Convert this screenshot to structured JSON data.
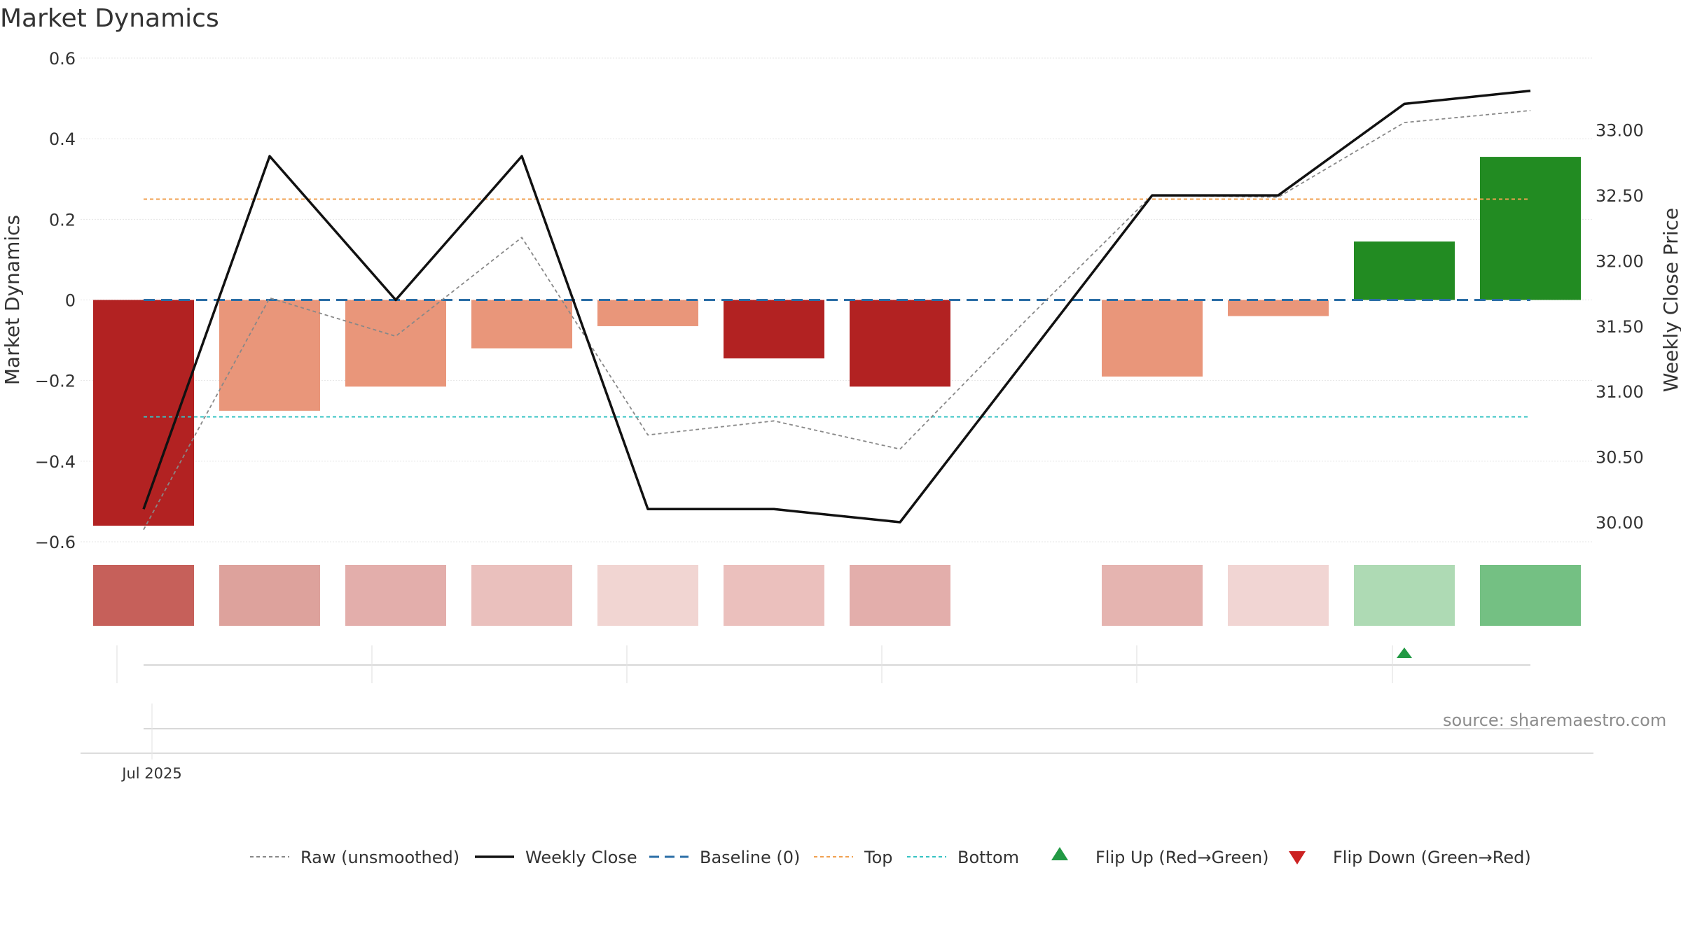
{
  "chart_data": {
    "type": "bar",
    "title": "Market Dynamics",
    "source": "source: sharemaestro.com",
    "ylabel_left": "Market Dynamics",
    "ylabel_right": "Weekly Close Price",
    "ylim_left": [
      -0.6,
      0.6
    ],
    "ylim_right": [
      29.85,
      33.55
    ],
    "left_ticks": [
      {
        "value": 0.6,
        "label": "0.6"
      },
      {
        "value": 0.4,
        "label": "0.4"
      },
      {
        "value": 0.2,
        "label": "0.2"
      },
      {
        "value": 0,
        "label": "0"
      },
      {
        "value": -0.2,
        "label": "−0.2"
      },
      {
        "value": -0.4,
        "label": "−0.4"
      },
      {
        "value": -0.6,
        "label": "−0.6"
      }
    ],
    "right_ticks": [
      {
        "value": 33.0,
        "label": "33.00"
      },
      {
        "value": 32.5,
        "label": "32.50"
      },
      {
        "value": 32.0,
        "label": "32.00"
      },
      {
        "value": 31.5,
        "label": "31.50"
      },
      {
        "value": 31.0,
        "label": "31.00"
      },
      {
        "value": 30.5,
        "label": "30.50"
      },
      {
        "value": 30.0,
        "label": "30.00"
      }
    ],
    "x_tick_label": "Jul 2025",
    "grid": true,
    "bars": [
      {
        "value": -0.56,
        "color": "#b22222"
      },
      {
        "value": -0.275,
        "color": "#e9967a"
      },
      {
        "value": -0.215,
        "color": "#e9967a"
      },
      {
        "value": -0.12,
        "color": "#e9967a"
      },
      {
        "value": -0.065,
        "color": "#e9967a"
      },
      {
        "value": -0.145,
        "color": "#b22222"
      },
      {
        "value": -0.215,
        "color": "#b22222"
      },
      {
        "value": null,
        "color": null
      },
      {
        "value": -0.19,
        "color": "#e9967a"
      },
      {
        "value": -0.04,
        "color": "#e9967a"
      },
      {
        "value": 0.145,
        "color": "#228b22"
      },
      {
        "value": 0.355,
        "color": "#228b22"
      }
    ],
    "heat_strip": [
      "#c6605a",
      "#dda29c",
      "#e3aeab",
      "#eac0bd",
      "#f1d5d2",
      "#ebc0bd",
      "#e3aeab",
      null,
      "#e5b4b0",
      "#f1d5d3",
      "#aedab4",
      "#74c083"
    ],
    "series": [
      {
        "name": "Raw (unsmoothed)",
        "color": "#888888",
        "style": "dotted",
        "axis": "left",
        "values": [
          -0.57,
          0.005,
          -0.09,
          0.155,
          -0.335,
          -0.3,
          -0.37,
          -0.05,
          0.26,
          0.255,
          0.44,
          0.47
        ]
      },
      {
        "name": "Weekly Close",
        "color": "#111111",
        "style": "solid",
        "axis": "right",
        "values": [
          30.1,
          32.8,
          31.7,
          32.8,
          30.1,
          30.1,
          30.0,
          null,
          32.5,
          32.5,
          33.2,
          33.3
        ]
      }
    ],
    "baseline": {
      "name": "Baseline (0)",
      "value": 0,
      "color": "#2b6ea6"
    },
    "top": {
      "name": "Top",
      "value": 0.25,
      "color": "#f0a050"
    },
    "bottom": {
      "name": "Bottom",
      "value": -0.29,
      "color": "#36c3c3"
    },
    "flips": [
      {
        "index": 10,
        "direction": "up",
        "color": "#229944"
      }
    ],
    "legend": {
      "placement": "bottom-center",
      "items": [
        {
          "label": "Raw (unsmoothed)",
          "kind": "dotted",
          "color": "#888888"
        },
        {
          "label": "Weekly Close",
          "kind": "solid",
          "color": "#111111"
        },
        {
          "label": "Baseline (0)",
          "kind": "dashed",
          "color": "#2b6ea6"
        },
        {
          "label": "Top",
          "kind": "dotted",
          "color": "#f0a050"
        },
        {
          "label": "Bottom",
          "kind": "dotted",
          "color": "#36c3c3"
        },
        {
          "label": "Flip Up (Red→Green)",
          "kind": "triangle-up",
          "color": "#229944"
        },
        {
          "label": "Flip Down (Green→Red)",
          "kind": "triangle-down",
          "color": "#cc2222"
        }
      ]
    }
  }
}
